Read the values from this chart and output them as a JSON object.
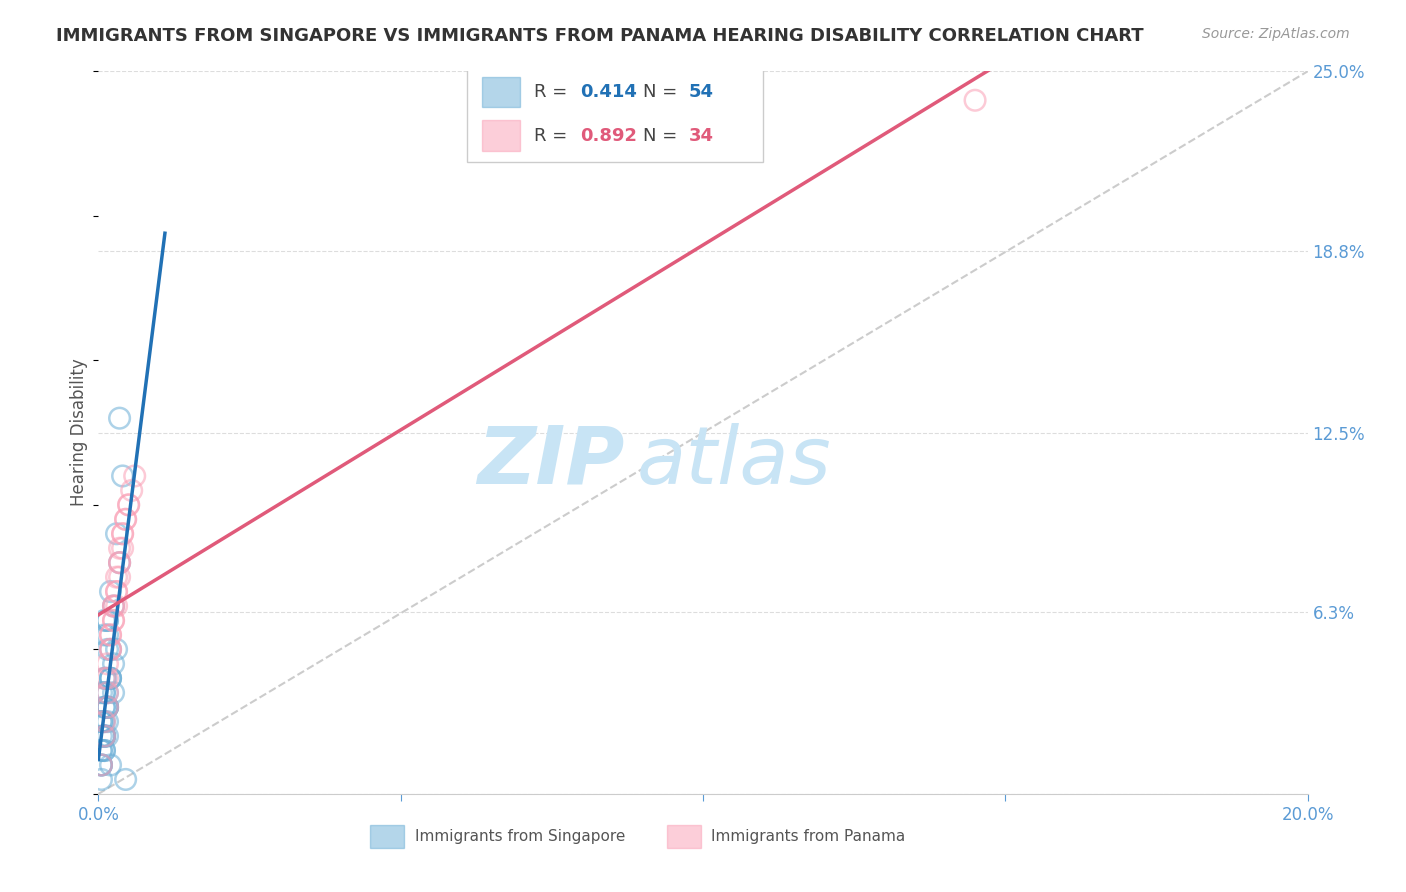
{
  "title": "IMMIGRANTS FROM SINGAPORE VS IMMIGRANTS FROM PANAMA HEARING DISABILITY CORRELATION CHART",
  "source": "Source: ZipAtlas.com",
  "ylabel": "Hearing Disability",
  "xlim": [
    0.0,
    0.2
  ],
  "ylim": [
    0.0,
    0.25
  ],
  "xticks": [
    0.0,
    0.05,
    0.1,
    0.15,
    0.2
  ],
  "xtick_labels": [
    "0.0%",
    "",
    "",
    "",
    "20.0%"
  ],
  "yticks_right": [
    0.0,
    0.063,
    0.125,
    0.188,
    0.25
  ],
  "ytick_labels_right": [
    "",
    "6.3%",
    "12.5%",
    "18.8%",
    "25.0%"
  ],
  "singapore_R": 0.414,
  "singapore_N": 54,
  "panama_R": 0.892,
  "panama_N": 34,
  "singapore_color": "#6baed6",
  "panama_color": "#fa9fb5",
  "singapore_line_color": "#2171b5",
  "panama_line_color": "#e05a7a",
  "diagonal_color": "#cccccc",
  "grid_color": "#dddddd",
  "background_color": "#ffffff",
  "watermark_zip": "ZIP",
  "watermark_atlas": "atlas",
  "watermark_color": "#c8e4f5",
  "title_fontsize": 13,
  "source_fontsize": 10,
  "legend_fontsize": 13,
  "axis_label_fontsize": 12,
  "tick_fontsize": 12,
  "singapore_x": [
    0.0005,
    0.001,
    0.0008,
    0.0015,
    0.001,
    0.0005,
    0.002,
    0.001,
    0.0012,
    0.0025,
    0.0005,
    0.001,
    0.0015,
    0.0005,
    0.001,
    0.0015,
    0.002,
    0.003,
    0.001,
    0.0015,
    0.0005,
    0.001,
    0.0025,
    0.002,
    0.0015,
    0.0035,
    0.001,
    0.0005,
    0.0015,
    0.001,
    0.002,
    0.0015,
    0.0005,
    0.001,
    0.003,
    0.0015,
    0.001,
    0.0005,
    0.0015,
    0.001,
    0.0015,
    0.0005,
    0.001,
    0.002,
    0.004,
    0.0015,
    0.0035,
    0.001,
    0.0045,
    0.0015,
    0.002,
    0.0005,
    0.001,
    0.0025
  ],
  "singapore_y": [
    0.035,
    0.04,
    0.025,
    0.03,
    0.06,
    0.02,
    0.05,
    0.035,
    0.04,
    0.045,
    0.015,
    0.02,
    0.03,
    0.01,
    0.025,
    0.035,
    0.04,
    0.05,
    0.055,
    0.06,
    0.025,
    0.03,
    0.065,
    0.07,
    0.055,
    0.08,
    0.02,
    0.025,
    0.03,
    0.035,
    0.04,
    0.05,
    0.015,
    0.02,
    0.09,
    0.06,
    0.03,
    0.01,
    0.025,
    0.02,
    0.03,
    0.01,
    0.02,
    0.04,
    0.11,
    0.03,
    0.13,
    0.015,
    0.005,
    0.02,
    0.01,
    0.005,
    0.015,
    0.035
  ],
  "panama_x": [
    0.0005,
    0.001,
    0.0015,
    0.001,
    0.0015,
    0.002,
    0.0025,
    0.0015,
    0.002,
    0.003,
    0.001,
    0.0015,
    0.002,
    0.0025,
    0.0035,
    0.002,
    0.003,
    0.0025,
    0.0035,
    0.003,
    0.004,
    0.0025,
    0.0035,
    0.003,
    0.004,
    0.0035,
    0.0045,
    0.004,
    0.005,
    0.0045,
    0.0055,
    0.005,
    0.145,
    0.006
  ],
  "panama_y": [
    0.01,
    0.02,
    0.03,
    0.04,
    0.045,
    0.055,
    0.06,
    0.035,
    0.05,
    0.065,
    0.025,
    0.04,
    0.055,
    0.065,
    0.075,
    0.05,
    0.07,
    0.06,
    0.08,
    0.07,
    0.085,
    0.065,
    0.08,
    0.075,
    0.09,
    0.085,
    0.095,
    0.09,
    0.1,
    0.095,
    0.105,
    0.1,
    0.24,
    0.11
  ]
}
